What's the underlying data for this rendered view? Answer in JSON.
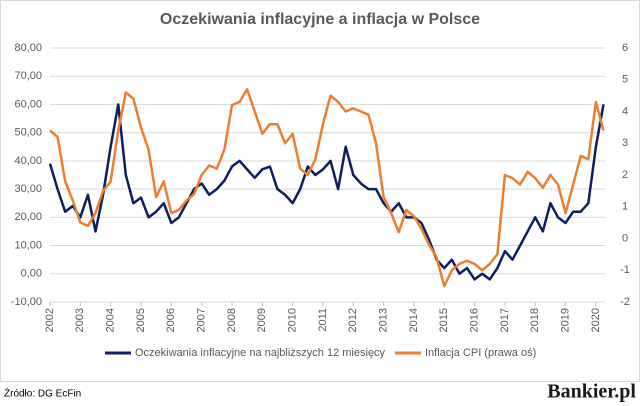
{
  "chart_data": {
    "type": "line",
    "title": "Oczekiwania inflacyjne a inflacja w Polsce",
    "source": "Źródło: DG EcFin",
    "logo": "Bankier.pl",
    "x": [
      2002,
      2002.25,
      2002.5,
      2002.75,
      2003,
      2003.25,
      2003.5,
      2003.75,
      2004,
      2004.25,
      2004.5,
      2004.75,
      2005,
      2005.25,
      2005.5,
      2005.75,
      2006,
      2006.25,
      2006.5,
      2006.75,
      2007,
      2007.25,
      2007.5,
      2007.75,
      2008,
      2008.25,
      2008.5,
      2008.75,
      2009,
      2009.25,
      2009.5,
      2009.75,
      2010,
      2010.25,
      2010.5,
      2010.75,
      2011,
      2011.25,
      2011.5,
      2011.75,
      2012,
      2012.25,
      2012.5,
      2012.75,
      2013,
      2013.25,
      2013.5,
      2013.75,
      2014,
      2014.25,
      2014.5,
      2014.75,
      2015,
      2015.25,
      2015.5,
      2015.75,
      2016,
      2016.25,
      2016.5,
      2016.75,
      2017,
      2017.25,
      2017.5,
      2017.75,
      2018,
      2018.25,
      2018.5,
      2018.75,
      2019,
      2019.25,
      2019.5,
      2019.75,
      2020,
      2020.25
    ],
    "series": [
      {
        "name": "Oczekiwania inflacyjne na najbliższych 12 miesięcy",
        "color": "#0d1f5c",
        "axis": "y",
        "values": [
          39,
          30,
          22,
          24,
          20,
          28,
          15,
          28,
          45,
          60,
          35,
          25,
          27,
          20,
          22,
          25,
          18,
          20,
          25,
          30,
          32,
          28,
          30,
          33,
          38,
          40,
          37,
          34,
          37,
          38,
          30,
          28,
          25,
          30,
          38,
          35,
          37,
          40,
          30,
          45,
          35,
          32,
          30,
          30,
          25,
          22,
          25,
          20,
          20,
          18,
          12,
          5,
          2,
          5,
          0,
          2,
          -2,
          0,
          -2,
          2,
          8,
          5,
          10,
          15,
          20,
          15,
          25,
          20,
          18,
          22,
          22,
          25,
          45,
          60
        ]
      },
      {
        "name": "Inflacja CPI (prawa oś)",
        "color": "#ed7d31",
        "axis": "y2",
        "values": [
          3.4,
          3.2,
          1.8,
          1.2,
          0.5,
          0.4,
          0.8,
          1.5,
          1.8,
          3.4,
          4.6,
          4.4,
          3.5,
          2.8,
          1.3,
          1.8,
          0.8,
          0.9,
          1.2,
          1.4,
          2.0,
          2.3,
          2.2,
          2.8,
          4.2,
          4.3,
          4.7,
          4.0,
          3.3,
          3.6,
          3.6,
          3.0,
          3.3,
          2.2,
          2.0,
          2.5,
          3.6,
          4.5,
          4.3,
          4.0,
          4.1,
          4.0,
          3.9,
          3.0,
          1.3,
          0.8,
          0.2,
          0.9,
          0.7,
          0.3,
          -0.2,
          -0.6,
          -1.5,
          -1.0,
          -0.8,
          -0.7,
          -0.8,
          -1.0,
          -0.8,
          -0.5,
          2.0,
          1.9,
          1.7,
          2.1,
          1.9,
          1.6,
          2.0,
          1.7,
          0.8,
          1.7,
          2.6,
          2.5,
          4.3,
          3.4
        ]
      }
    ],
    "xlim": [
      2002,
      2020.3
    ],
    "xticks": [
      2002,
      2003,
      2004,
      2005,
      2006,
      2007,
      2008,
      2009,
      2010,
      2011,
      2012,
      2013,
      2014,
      2015,
      2016,
      2017,
      2018,
      2019,
      2020
    ],
    "ylim": [
      -10,
      80
    ],
    "yticks": [
      {
        "value": -10,
        "label": "-10,00"
      },
      {
        "value": 0,
        "label": "0,00"
      },
      {
        "value": 10,
        "label": "10,00"
      },
      {
        "value": 20,
        "label": "20,00"
      },
      {
        "value": 30,
        "label": "30,00"
      },
      {
        "value": 40,
        "label": "40,00"
      },
      {
        "value": 50,
        "label": "50,00"
      },
      {
        "value": 60,
        "label": "60,00"
      },
      {
        "value": 70,
        "label": "70,00"
      },
      {
        "value": 80,
        "label": "80,00"
      }
    ],
    "y2lim": [
      -2,
      6
    ],
    "y2ticks": [
      -2,
      -1,
      0,
      1,
      2,
      3,
      4,
      5,
      6
    ],
    "grid": true,
    "legend": "bottom"
  }
}
